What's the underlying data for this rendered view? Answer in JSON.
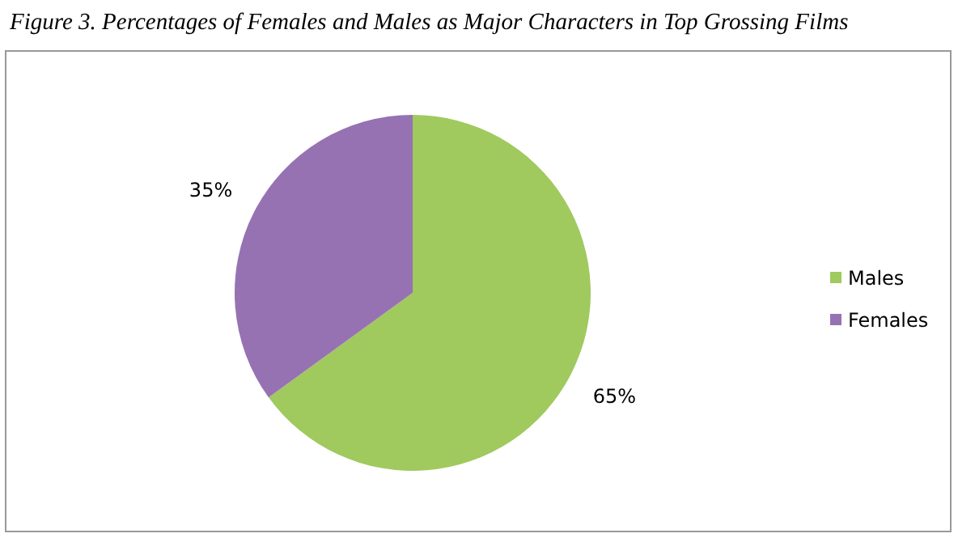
{
  "chart_data": {
    "type": "pie",
    "title": "Figure 3. Percentages of Females and Males as Major Characters in Top Grossing Films",
    "categories": [
      "Males",
      "Females"
    ],
    "values": [
      65,
      35
    ],
    "colors": [
      "#a0c95e",
      "#9672b3"
    ],
    "value_labels": [
      "65%",
      "35%"
    ],
    "legend": "right"
  }
}
